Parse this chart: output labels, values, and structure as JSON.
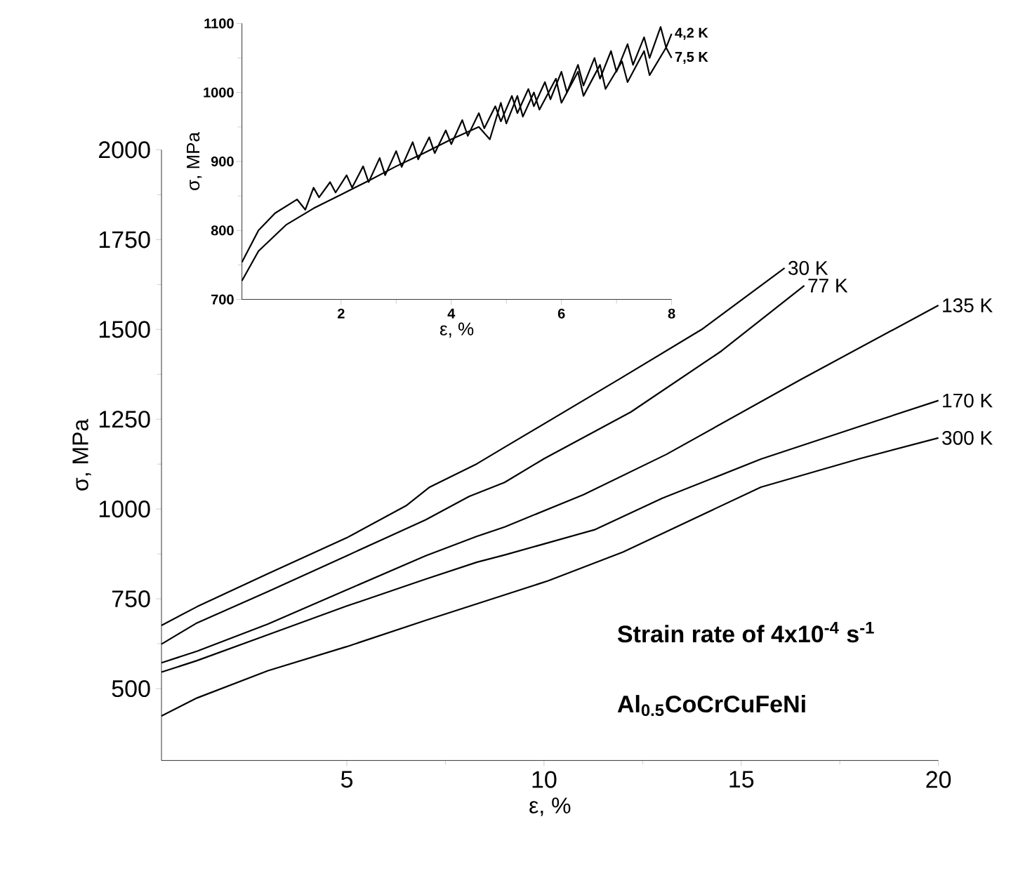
{
  "chart_data": [
    {
      "type": "line",
      "xlabel": "ε, %",
      "ylabel": "σ, MPa",
      "xlim": [
        0.3,
        20
      ],
      "ylim": [
        300,
        2000
      ],
      "xticks": [
        5,
        10,
        15,
        20
      ],
      "yticks": [
        500,
        750,
        1000,
        1250,
        1500,
        1750,
        2000
      ],
      "annotations": [
        "**Strain rate of 4x10$^{-4}$ s$^{-1}$**",
        "**Al$_{0.5}$CoCrCuFeNi**"
      ],
      "series": [
        {
          "name": "30 K",
          "color": "#000000",
          "x": [
            0.3,
            1.2,
            3,
            5,
            6.5,
            7.1,
            8.3,
            9,
            11.9,
            14,
            16.1
          ],
          "values": [
            676,
            728,
            820,
            920,
            1009,
            1061,
            1126,
            1172,
            1361,
            1500,
            1671
          ]
        },
        {
          "name": "77 K",
          "color": "#000000",
          "x": [
            0.3,
            1.2,
            3,
            5,
            7,
            8.1,
            9,
            10,
            12.2,
            14.5,
            16.6
          ],
          "values": [
            624,
            683,
            770,
            870,
            970,
            1035,
            1074,
            1140,
            1270,
            1440,
            1622
          ]
        },
        {
          "name": "135 K",
          "color": "#000000",
          "x": [
            0.3,
            1.2,
            3,
            5,
            7,
            8.3,
            9,
            11,
            13.1,
            16.5,
            20
          ],
          "values": [
            572,
            604,
            680,
            775,
            870,
            924,
            950,
            1040,
            1152,
            1360,
            1567
          ]
        },
        {
          "name": "170 K",
          "color": "#000000",
          "x": [
            0.3,
            1.2,
            3,
            5,
            7,
            8.3,
            9,
            11.3,
            13,
            15.5,
            18,
            20
          ],
          "values": [
            546,
            578,
            650,
            730,
            805,
            852,
            872,
            943,
            1030,
            1139,
            1230,
            1302
          ]
        },
        {
          "name": "300 K",
          "color": "#000000",
          "x": [
            0.3,
            1.2,
            3,
            5,
            7,
            9,
            10.1,
            12,
            15.5,
            18,
            20
          ],
          "values": [
            424,
            474,
            550,
            617,
            690,
            761,
            800,
            880,
            1061,
            1140,
            1198
          ]
        }
      ]
    },
    {
      "type": "line",
      "xlabel": "ε, %",
      "ylabel": "σ, MPa",
      "xlim": [
        0.2,
        8
      ],
      "ylim": [
        700,
        1100
      ],
      "xticks": [
        2,
        4,
        6,
        8
      ],
      "yticks": [
        700,
        800,
        900,
        1000,
        1100
      ],
      "series": [
        {
          "name": "4,2 K",
          "color": "#000000",
          "x": [
            0.2,
            0.5,
            0.8,
            1.2,
            1.35,
            1.5,
            1.6,
            1.8,
            1.9,
            2.1,
            2.2,
            2.4,
            2.5,
            2.7,
            2.8,
            3.0,
            3.1,
            3.3,
            3.4,
            3.6,
            3.7,
            3.9,
            4.0,
            4.2,
            4.3,
            4.5,
            4.6,
            4.8,
            4.9,
            5.1,
            5.2,
            5.4,
            5.5,
            5.7,
            5.8,
            6.0,
            6.1,
            6.3,
            6.4,
            6.6,
            6.7,
            6.9,
            7.0,
            7.2,
            7.3,
            7.5,
            7.6,
            7.8,
            7.9,
            8.0
          ],
          "values": [
            754,
            800,
            825,
            845,
            830,
            862,
            848,
            870,
            855,
            880,
            862,
            893,
            870,
            905,
            880,
            915,
            892,
            928,
            903,
            935,
            912,
            945,
            925,
            960,
            937,
            970,
            948,
            980,
            958,
            995,
            970,
            1005,
            980,
            1015,
            990,
            1030,
            1000,
            1040,
            1010,
            1050,
            1020,
            1060,
            1030,
            1070,
            1040,
            1080,
            1050,
            1095,
            1065,
            1085
          ]
        },
        {
          "name": "7,5 K",
          "color": "#000000",
          "x": [
            0.2,
            0.5,
            1.0,
            1.5,
            2.0,
            2.5,
            3.0,
            3.5,
            4.0,
            4.5,
            4.7,
            4.9,
            5.0,
            5.2,
            5.3,
            5.5,
            5.6,
            5.9,
            6.0,
            6.3,
            6.4,
            6.7,
            6.8,
            7.1,
            7.2,
            7.5,
            7.6,
            7.9,
            8.0
          ],
          "values": [
            727,
            770,
            808,
            832,
            852,
            872,
            893,
            912,
            932,
            950,
            932,
            985,
            955,
            995,
            965,
            1000,
            975,
            1020,
            985,
            1030,
            995,
            1040,
            1005,
            1045,
            1015,
            1060,
            1025,
            1065,
            1050
          ]
        }
      ]
    }
  ]
}
